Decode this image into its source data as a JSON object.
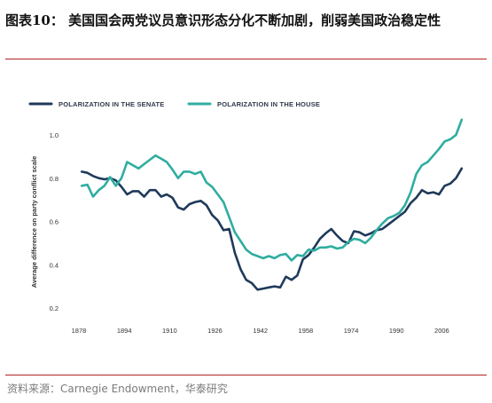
{
  "header": {
    "title": "图表10：  美国国会两党议员意识形态分化不断加剧，削弱美国政治稳定性"
  },
  "footer": {
    "source": "资料来源：Carnegie Endowment，华泰研究"
  },
  "colors": {
    "senate": "#1f3a5a",
    "house": "#2fada0",
    "rule": "#b22222"
  },
  "chart_data": {
    "type": "line",
    "title": "",
    "xlabel": "",
    "ylabel": "Average difference on party conflict scale",
    "xlim": [
      1873,
      2009
    ],
    "ylim": [
      0.2,
      1.1
    ],
    "grid": false,
    "legend_position": "top-left",
    "xticks": [
      "1878",
      "1894",
      "1910",
      "1926",
      "1942",
      "1958",
      "1974",
      "1990",
      "2006"
    ],
    "yticks": [
      "0.2",
      "0.4",
      "0.6",
      "0.8",
      "1.0"
    ],
    "series": [
      {
        "name": "POLARIZATION IN THE SENATE",
        "color": "#1f3a5a",
        "points": [
          [
            1879,
            0.83
          ],
          [
            1881,
            0.825
          ],
          [
            1883,
            0.81
          ],
          [
            1885,
            0.8
          ],
          [
            1887,
            0.795
          ],
          [
            1889,
            0.8
          ],
          [
            1891,
            0.79
          ],
          [
            1893,
            0.76
          ],
          [
            1895,
            0.725
          ],
          [
            1897,
            0.74
          ],
          [
            1899,
            0.74
          ],
          [
            1901,
            0.715
          ],
          [
            1903,
            0.745
          ],
          [
            1905,
            0.745
          ],
          [
            1907,
            0.715
          ],
          [
            1909,
            0.725
          ],
          [
            1911,
            0.71
          ],
          [
            1913,
            0.665
          ],
          [
            1915,
            0.655
          ],
          [
            1917,
            0.68
          ],
          [
            1919,
            0.69
          ],
          [
            1921,
            0.695
          ],
          [
            1923,
            0.675
          ],
          [
            1925,
            0.63
          ],
          [
            1927,
            0.605
          ],
          [
            1929,
            0.56
          ],
          [
            1931,
            0.565
          ],
          [
            1933,
            0.455
          ],
          [
            1935,
            0.38
          ],
          [
            1937,
            0.33
          ],
          [
            1939,
            0.315
          ],
          [
            1941,
            0.285
          ],
          [
            1943,
            0.29
          ],
          [
            1945,
            0.295
          ],
          [
            1947,
            0.3
          ],
          [
            1949,
            0.295
          ],
          [
            1951,
            0.345
          ],
          [
            1953,
            0.33
          ],
          [
            1955,
            0.35
          ],
          [
            1957,
            0.425
          ],
          [
            1959,
            0.445
          ],
          [
            1961,
            0.48
          ],
          [
            1963,
            0.52
          ],
          [
            1965,
            0.545
          ],
          [
            1967,
            0.565
          ],
          [
            1969,
            0.535
          ],
          [
            1971,
            0.51
          ],
          [
            1973,
            0.5
          ],
          [
            1975,
            0.555
          ],
          [
            1977,
            0.55
          ],
          [
            1979,
            0.535
          ],
          [
            1981,
            0.545
          ],
          [
            1983,
            0.56
          ],
          [
            1985,
            0.565
          ],
          [
            1987,
            0.585
          ],
          [
            1989,
            0.605
          ],
          [
            1991,
            0.625
          ],
          [
            1993,
            0.645
          ],
          [
            1995,
            0.685
          ],
          [
            1997,
            0.71
          ],
          [
            1999,
            0.745
          ],
          [
            2001,
            0.73
          ],
          [
            2003,
            0.735
          ],
          [
            2005,
            0.725
          ],
          [
            2007,
            0.765
          ],
          [
            2009,
            0.775
          ],
          [
            2011,
            0.8
          ],
          [
            2013,
            0.845
          ]
        ]
      },
      {
        "name": "POLARIZATION IN THE HOUSE",
        "color": "#2fada0",
        "points": [
          [
            1879,
            0.765
          ],
          [
            1881,
            0.77
          ],
          [
            1883,
            0.715
          ],
          [
            1885,
            0.745
          ],
          [
            1887,
            0.765
          ],
          [
            1889,
            0.805
          ],
          [
            1891,
            0.765
          ],
          [
            1893,
            0.8
          ],
          [
            1895,
            0.875
          ],
          [
            1897,
            0.86
          ],
          [
            1899,
            0.845
          ],
          [
            1901,
            0.865
          ],
          [
            1903,
            0.885
          ],
          [
            1905,
            0.905
          ],
          [
            1907,
            0.89
          ],
          [
            1909,
            0.875
          ],
          [
            1911,
            0.84
          ],
          [
            1913,
            0.8
          ],
          [
            1915,
            0.83
          ],
          [
            1917,
            0.83
          ],
          [
            1919,
            0.82
          ],
          [
            1921,
            0.83
          ],
          [
            1923,
            0.78
          ],
          [
            1925,
            0.76
          ],
          [
            1927,
            0.725
          ],
          [
            1929,
            0.69
          ],
          [
            1931,
            0.62
          ],
          [
            1933,
            0.55
          ],
          [
            1935,
            0.51
          ],
          [
            1937,
            0.47
          ],
          [
            1939,
            0.45
          ],
          [
            1941,
            0.44
          ],
          [
            1943,
            0.43
          ],
          [
            1945,
            0.44
          ],
          [
            1947,
            0.43
          ],
          [
            1949,
            0.445
          ],
          [
            1951,
            0.45
          ],
          [
            1953,
            0.42
          ],
          [
            1955,
            0.445
          ],
          [
            1957,
            0.44
          ],
          [
            1959,
            0.47
          ],
          [
            1961,
            0.465
          ],
          [
            1963,
            0.48
          ],
          [
            1965,
            0.48
          ],
          [
            1967,
            0.485
          ],
          [
            1969,
            0.475
          ],
          [
            1971,
            0.48
          ],
          [
            1973,
            0.505
          ],
          [
            1975,
            0.52
          ],
          [
            1977,
            0.515
          ],
          [
            1979,
            0.5
          ],
          [
            1981,
            0.525
          ],
          [
            1983,
            0.56
          ],
          [
            1985,
            0.59
          ],
          [
            1987,
            0.615
          ],
          [
            1989,
            0.625
          ],
          [
            1991,
            0.64
          ],
          [
            1993,
            0.675
          ],
          [
            1995,
            0.735
          ],
          [
            1997,
            0.82
          ],
          [
            1999,
            0.86
          ],
          [
            2001,
            0.875
          ],
          [
            2003,
            0.905
          ],
          [
            2005,
            0.935
          ],
          [
            2007,
            0.97
          ],
          [
            2009,
            0.98
          ],
          [
            2011,
            1.0
          ],
          [
            2013,
            1.07
          ]
        ]
      }
    ]
  }
}
